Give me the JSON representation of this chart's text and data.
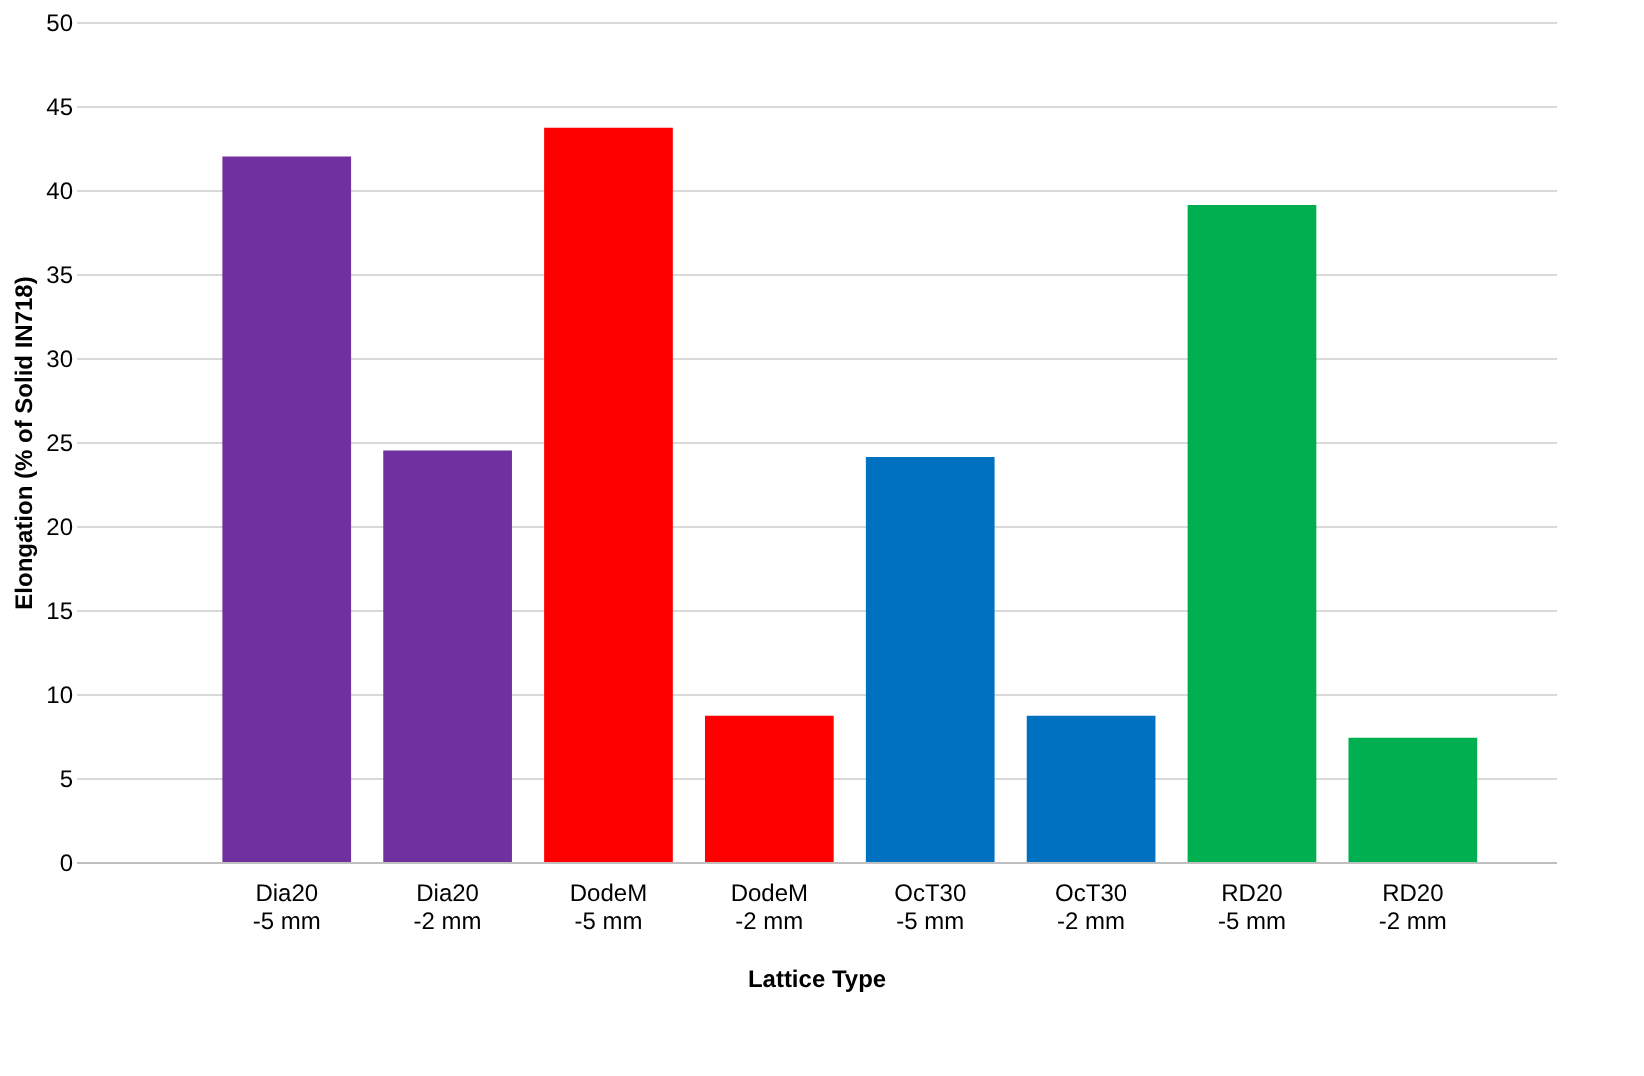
{
  "chart_data": {
    "type": "bar",
    "xlabel": "Lattice Type",
    "ylabel": "Elongation (% of Solid IN718)",
    "categories": [
      "Dia20\n-5 mm",
      "Dia20\n-2 mm",
      "DodeM\n-5 mm",
      "DodeM\n-2 mm",
      "OcT30\n-5 mm",
      "OcT30\n-2 mm",
      "RD20\n-5 mm",
      "RD20\n-2 mm"
    ],
    "values": [
      42,
      24.5,
      43.7,
      8.7,
      24.1,
      8.7,
      39.1,
      7.4
    ],
    "colors": [
      "#7030a0",
      "#7030a0",
      "#ff0000",
      "#ff0000",
      "#0070c0",
      "#0070c0",
      "#00b050",
      "#00b050"
    ],
    "ylim": [
      0,
      50
    ],
    "yticks": [
      0,
      5,
      10,
      15,
      20,
      25,
      30,
      35,
      40,
      45,
      50
    ],
    "grid": "y"
  }
}
